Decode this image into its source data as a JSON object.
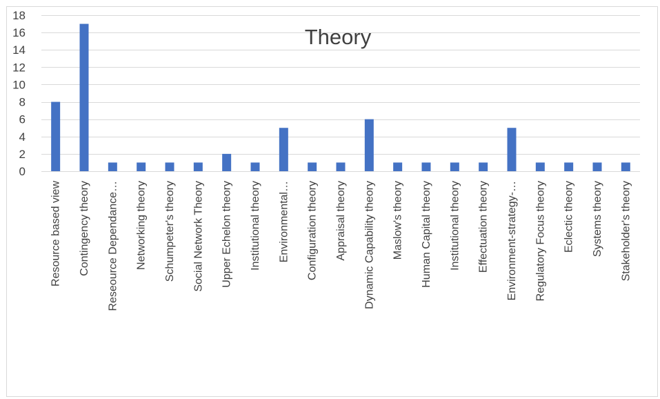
{
  "chart_data": {
    "type": "bar",
    "title": "Theory",
    "xlabel": "",
    "ylabel": "",
    "ylim": [
      0,
      18
    ],
    "ytick_step": 2,
    "yticks": [
      "0",
      "2",
      "4",
      "6",
      "8",
      "10",
      "12",
      "14",
      "16",
      "18"
    ],
    "grid": true,
    "legend": "none",
    "bar_color": "#4472c4",
    "categories": [
      "Resource based view",
      "Contingency theory",
      "Reseource Dependance…",
      "Networking theory",
      "Schumpeter's theory",
      "Social Network Theory",
      "Upper Echelon theory",
      "Institutional theory",
      "Environmental…",
      "Configuration theory",
      "Appraisal theory",
      "Dynamic Capability theory",
      "Maslow's theory",
      "Human Capital theory",
      "Institutional theory",
      "Effectuation theory",
      "Environment-strategy-…",
      "Regulatory Focus theory",
      "Eclectic theory",
      "Systems theory",
      "Stakeholder's theory"
    ],
    "values": [
      8,
      17,
      1,
      1,
      1,
      1,
      2,
      1,
      5,
      1,
      1,
      6,
      1,
      1,
      1,
      1,
      5,
      1,
      1,
      1,
      1
    ]
  }
}
